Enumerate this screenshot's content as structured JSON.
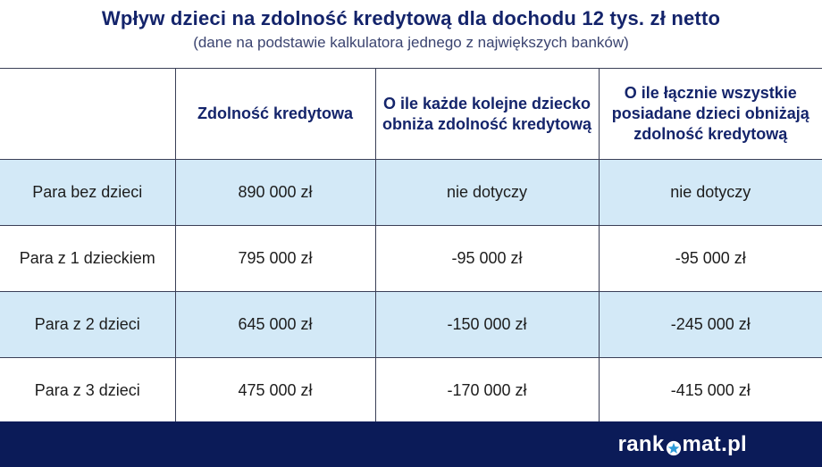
{
  "title": "Wpływ dzieci na zdolność kredytową dla dochodu 12 tys. zł netto",
  "subtitle": "(dane na podstawie kalkulatora jednego z największych banków)",
  "table": {
    "headers": [
      "",
      "Zdolność kredytowa",
      "O ile każde kolejne dziecko obniża zdolność kredytową",
      "O ile łącznie wszystkie posiadane dzieci obniżają zdolność kredytową"
    ],
    "rows": [
      [
        "Para bez dzieci",
        "890 000 zł",
        "nie dotyczy",
        "nie dotyczy"
      ],
      [
        "Para z 1 dzieckiem",
        "795 000 zł",
        "-95 000 zł",
        "-95 000 zł"
      ],
      [
        "Para z 2 dzieci",
        "645 000 zł",
        "-150 000 zł",
        "-245 000 zł"
      ],
      [
        "Para z 3 dzieci",
        "475 000 zł",
        "-170 000 zł",
        "-415 000 zł"
      ]
    ]
  },
  "footer": {
    "logo_part1": "rank",
    "logo_part2": "mat.pl",
    "logo_icon": "star-icon"
  },
  "colors": {
    "title": "#14246b",
    "row_shade": "#d3e9f7",
    "footer_bg": "#0b1b58"
  }
}
